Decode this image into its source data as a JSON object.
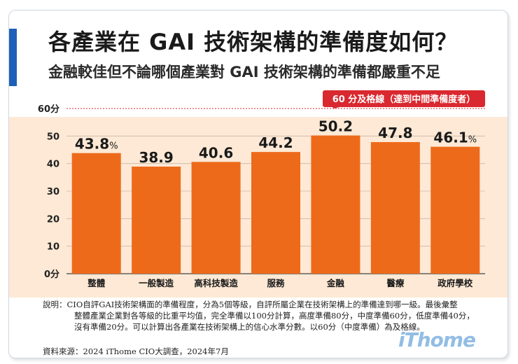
{
  "header": {
    "title": "各產業在 GAI 技術架構的準備度如何？",
    "subtitle": "金融較佳但不論哪個產業對 GAI 技術架構的準備都嚴重不足"
  },
  "reference_line": {
    "label": "60 分及格線（達到中間準備度者）",
    "value": 60,
    "color": "#d9282f"
  },
  "chart_data": {
    "type": "bar",
    "categories": [
      "整體",
      "一般製造",
      "高科技製造",
      "服務",
      "金融",
      "醫療",
      "政府學校"
    ],
    "values": [
      43.8,
      38.9,
      40.6,
      44.2,
      50.2,
      47.8,
      46.1
    ],
    "value_labels": [
      "43.8",
      "38.9",
      "40.6",
      "44.2",
      "50.2",
      "47.8",
      "46.1"
    ],
    "value_suffix": {
      "first": "%",
      "last": "%"
    },
    "y_ticks": [
      "0分",
      "10",
      "20",
      "30",
      "40",
      "50",
      "60分"
    ],
    "ylim": [
      0,
      60
    ],
    "bar_color": "#ee6a1b",
    "plot_background": "#fde9d5",
    "grid": true
  },
  "notes": {
    "line1": "說明：CIO自評GAI技術架構面的準備程度，分為5個等級，自評所屬企業在技術架構上的準備達到哪一級。最後彙整",
    "line2": "整體產業企業對各等級的比重平均值，完全準備以100分計算，高度準備80分，中度準備60分，低度準備40分，",
    "line3": "沒有準備20分。可以計算出各產業在技術架構上的信心水準分數。以60分（中度準備）為及格線。",
    "source": "資料來源：2024 iThome CIO大調查，2024年7月"
  },
  "logo": "iThome",
  "colors": {
    "accent": "#1c5fb8",
    "bar": "#ee6a1b",
    "reference": "#d9282f"
  }
}
